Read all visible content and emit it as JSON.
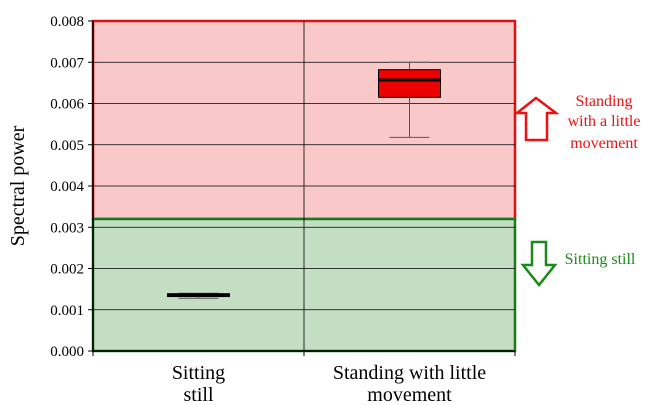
{
  "chart_data": {
    "type": "box",
    "ylabel": "Spectral power",
    "ylim": [
      0,
      0.008
    ],
    "yticks": [
      "0.000",
      "0.001",
      "0.002",
      "0.003",
      "0.004",
      "0.005",
      "0.006",
      "0.007",
      "0.008"
    ],
    "ytick_values": [
      0,
      0.001,
      0.002,
      0.003,
      0.004,
      0.005,
      0.006,
      0.007,
      0.008
    ],
    "categories": [
      {
        "line1": "Sitting",
        "line2": "still"
      },
      {
        "line1": "Standing with little",
        "line2": "movement"
      }
    ],
    "boxes": [
      {
        "category_index": 0,
        "min": 0.00128,
        "q1": 0.00132,
        "median": 0.00135,
        "q3": 0.00139,
        "max": 0.0014
      },
      {
        "category_index": 1,
        "min": 0.00518,
        "q1": 0.00615,
        "median": 0.00657,
        "q3": 0.00682,
        "max": 0.007
      }
    ],
    "regions": [
      {
        "name": "standing",
        "from": 0.0032,
        "to": 0.008,
        "fill": "#f9c9c9",
        "stroke": "#dd1111"
      },
      {
        "name": "sitting",
        "from": 0,
        "to": 0.0032,
        "fill": "#c3dec3",
        "stroke": "#1a7a1a"
      }
    ],
    "annotations": {
      "up": {
        "lines": [
          "Standing",
          "with a little",
          "movement"
        ],
        "color": "#ee1111"
      },
      "down": {
        "lines": [
          "Sitting still"
        ],
        "color": "#1a8a1a"
      }
    },
    "box_fill": "#ee0000",
    "grid": true
  }
}
